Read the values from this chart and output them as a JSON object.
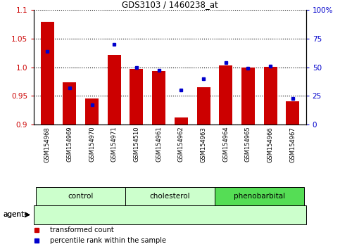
{
  "title": "GDS3103 / 1460238_at",
  "samples": [
    "GSM154968",
    "GSM154969",
    "GSM154970",
    "GSM154971",
    "GSM154510",
    "GSM154961",
    "GSM154962",
    "GSM154963",
    "GSM154964",
    "GSM154965",
    "GSM154966",
    "GSM154967"
  ],
  "red_values": [
    1.079,
    0.974,
    0.945,
    1.022,
    0.997,
    0.993,
    0.912,
    0.965,
    1.003,
    0.999,
    1.001,
    0.941
  ],
  "blue_values": [
    64,
    32,
    17,
    70,
    50,
    47,
    30,
    40,
    54,
    49,
    51,
    23
  ],
  "groups": [
    {
      "label": "control",
      "start": 0,
      "end": 4,
      "color": "#ccffcc"
    },
    {
      "label": "cholesterol",
      "start": 4,
      "end": 8,
      "color": "#ccffcc"
    },
    {
      "label": "phenobarbital",
      "start": 8,
      "end": 12,
      "color": "#55dd55"
    }
  ],
  "ylim_left": [
    0.9,
    1.1
  ],
  "ylim_right": [
    0,
    100
  ],
  "yticks_left": [
    0.9,
    0.95,
    1.0,
    1.05,
    1.1
  ],
  "yticks_right": [
    0,
    25,
    50,
    75,
    100
  ],
  "red_color": "#cc0000",
  "blue_color": "#0000cc",
  "bar_width": 0.6,
  "legend_red": "transformed count",
  "legend_blue": "percentile rank within the sample",
  "agent_label": "agent",
  "bg_color": "#ffffff",
  "plot_bg": "#ffffff"
}
